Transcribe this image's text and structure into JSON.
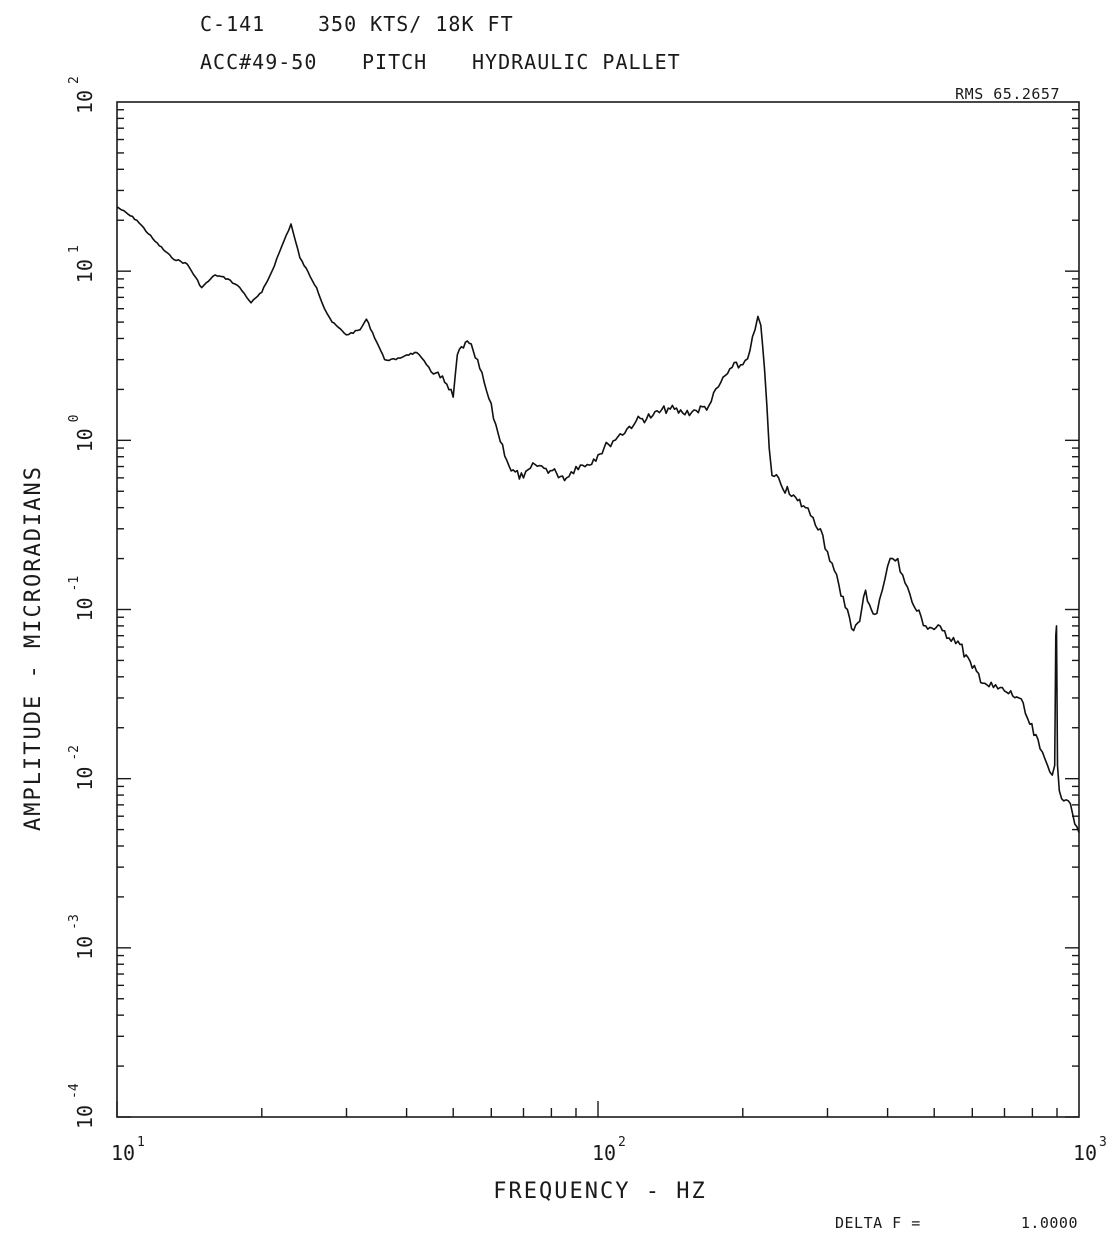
{
  "header": {
    "line1_aircraft": "C-141",
    "line1_condition": "350 KTS/ 18K FT",
    "line2_sensor": "ACC#49-50",
    "line2_axis": "PITCH",
    "line2_location": "HYDRAULIC PALLET"
  },
  "rms_label": "RMS 65.2657",
  "delta_f_label": "DELTA F =",
  "delta_f_value": "1.0000",
  "chart_data": {
    "type": "line",
    "x_scale": "log",
    "y_scale": "log",
    "xlabel": "FREQUENCY - HZ",
    "ylabel": "AMPLITUDE - MICRORADIANS",
    "xlim": [
      10,
      1000
    ],
    "ylim": [
      0.0001,
      100
    ],
    "x_ticks": [
      {
        "base": "10",
        "exp": "1"
      },
      {
        "base": "10",
        "exp": "2"
      },
      {
        "base": "10",
        "exp": "3"
      }
    ],
    "y_ticks": [
      {
        "base": "10",
        "exp": "2",
        "value": 100
      },
      {
        "base": "10",
        "exp": "1",
        "value": 10
      },
      {
        "base": "10",
        "exp": "0",
        "value": 1
      },
      {
        "base": "10",
        "exp": "-1",
        "value": 0.1
      },
      {
        "base": "10",
        "exp": "-2",
        "value": 0.01
      },
      {
        "base": "10",
        "exp": "-3",
        "value": 0.001
      },
      {
        "base": "10",
        "exp": "-4",
        "value": 0.0001
      }
    ],
    "grid": false,
    "series": [
      {
        "points": [
          [
            10,
            24
          ],
          [
            11,
            20
          ],
          [
            12,
            15
          ],
          [
            13,
            12
          ],
          [
            14,
            11
          ],
          [
            15,
            8
          ],
          [
            16,
            9.5
          ],
          [
            17,
            9
          ],
          [
            18,
            8
          ],
          [
            19,
            6.5
          ],
          [
            20,
            7.5
          ],
          [
            21,
            10
          ],
          [
            22,
            14
          ],
          [
            23,
            19
          ],
          [
            24,
            12
          ],
          [
            26,
            8
          ],
          [
            27,
            6
          ],
          [
            28,
            5
          ],
          [
            30,
            4.2
          ],
          [
            32,
            4.5
          ],
          [
            33,
            5.2
          ],
          [
            35,
            3.6
          ],
          [
            36,
            3
          ],
          [
            38,
            3
          ],
          [
            40,
            3.2
          ],
          [
            42,
            3.3
          ],
          [
            44,
            2.8
          ],
          [
            46,
            2.5
          ],
          [
            48,
            2.2
          ],
          [
            50,
            1.8
          ],
          [
            51,
            3.2
          ],
          [
            53,
            3.8
          ],
          [
            55,
            3.4
          ],
          [
            58,
            2.2
          ],
          [
            62,
            1.1
          ],
          [
            66,
            0.66
          ],
          [
            70,
            0.6
          ],
          [
            74,
            0.72
          ],
          [
            78,
            0.68
          ],
          [
            82,
            0.64
          ],
          [
            86,
            0.6
          ],
          [
            90,
            0.7
          ],
          [
            95,
            0.72
          ],
          [
            100,
            0.82
          ],
          [
            105,
            0.95
          ],
          [
            110,
            1.05
          ],
          [
            120,
            1.3
          ],
          [
            130,
            1.4
          ],
          [
            140,
            1.55
          ],
          [
            150,
            1.45
          ],
          [
            160,
            1.5
          ],
          [
            170,
            1.6
          ],
          [
            180,
            2.2
          ],
          [
            190,
            2.7
          ],
          [
            200,
            2.8
          ],
          [
            207,
            3.4
          ],
          [
            212,
            4.5
          ],
          [
            215,
            5.4
          ],
          [
            218,
            4.8
          ],
          [
            222,
            2.6
          ],
          [
            227,
            0.9
          ],
          [
            230,
            0.62
          ],
          [
            240,
            0.55
          ],
          [
            250,
            0.48
          ],
          [
            260,
            0.44
          ],
          [
            270,
            0.4
          ],
          [
            280,
            0.35
          ],
          [
            290,
            0.3
          ],
          [
            300,
            0.22
          ],
          [
            310,
            0.17
          ],
          [
            320,
            0.12
          ],
          [
            330,
            0.1
          ],
          [
            340,
            0.075
          ],
          [
            350,
            0.085
          ],
          [
            360,
            0.13
          ],
          [
            370,
            0.1
          ],
          [
            380,
            0.095
          ],
          [
            390,
            0.13
          ],
          [
            400,
            0.18
          ],
          [
            410,
            0.2
          ],
          [
            420,
            0.2
          ],
          [
            430,
            0.16
          ],
          [
            450,
            0.11
          ],
          [
            480,
            0.08
          ],
          [
            520,
            0.075
          ],
          [
            560,
            0.065
          ],
          [
            600,
            0.045
          ],
          [
            650,
            0.035
          ],
          [
            700,
            0.033
          ],
          [
            750,
            0.03
          ],
          [
            790,
            0.021
          ],
          [
            830,
            0.015
          ],
          [
            860,
            0.012
          ],
          [
            880,
            0.0105
          ],
          [
            890,
            0.012
          ],
          [
            895,
            0.07
          ],
          [
            898,
            0.08
          ],
          [
            902,
            0.012
          ],
          [
            910,
            0.0085
          ],
          [
            940,
            0.0075
          ],
          [
            970,
            0.0062
          ],
          [
            990,
            0.0052
          ],
          [
            1000,
            0.0048
          ]
        ]
      }
    ]
  }
}
